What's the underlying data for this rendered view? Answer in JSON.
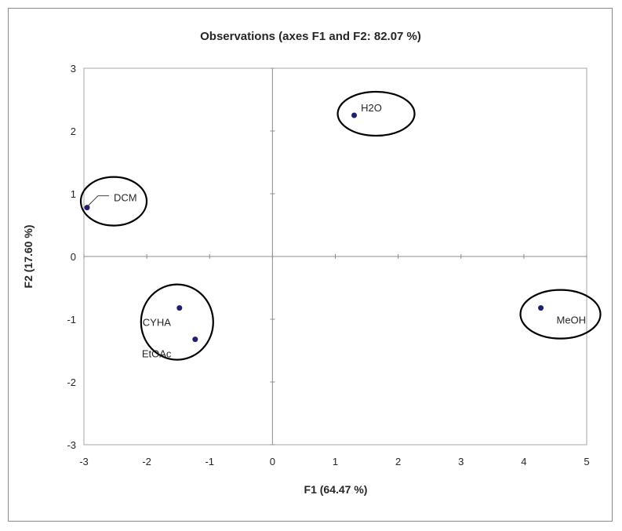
{
  "chart_data": {
    "type": "scatter",
    "title": "Observations (axes F1 and F2: 82.07 %)",
    "xlabel": "F1 (64.47 %)",
    "ylabel": "F2 (17.60 %)",
    "xlim": [
      -3,
      5
    ],
    "ylim": [
      -3,
      3
    ],
    "xticks": [
      "-3",
      "-2",
      "-1",
      "0",
      "1",
      "2",
      "3",
      "4",
      "5"
    ],
    "yticks": [
      "3",
      "2",
      "1",
      "0",
      "-1",
      "-2",
      "-3"
    ],
    "grid": false,
    "legend": "none",
    "point_color": "#1f1f6e",
    "points": [
      {
        "label": "H2O",
        "x": 1.3,
        "y": 2.25
      },
      {
        "label": "DCM",
        "x": -2.95,
        "y": 0.78
      },
      {
        "label": "CYHA",
        "x": -1.48,
        "y": -0.82
      },
      {
        "label": "EtOAc",
        "x": -1.23,
        "y": -1.32
      },
      {
        "label": "MeOH",
        "x": 4.27,
        "y": -0.82
      }
    ],
    "groups": [
      {
        "members": [
          "H2O"
        ]
      },
      {
        "members": [
          "DCM"
        ]
      },
      {
        "members": [
          "CYHA",
          "EtOAc"
        ]
      },
      {
        "members": [
          "MeOH"
        ]
      }
    ]
  }
}
